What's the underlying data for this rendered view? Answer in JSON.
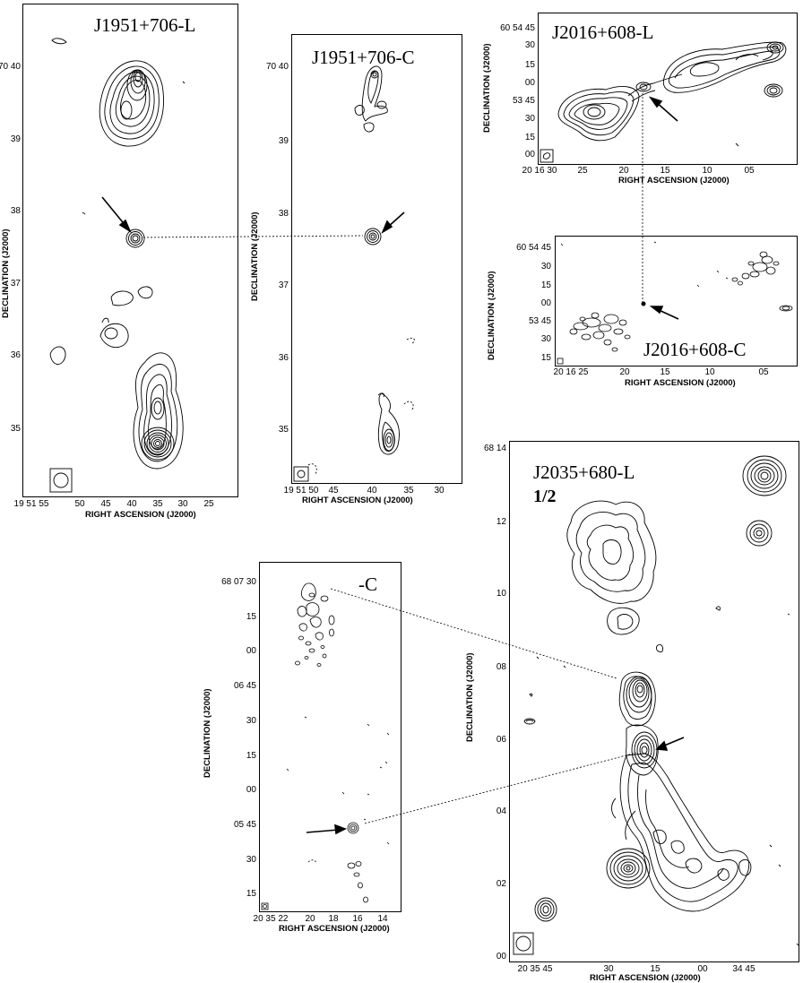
{
  "figure": {
    "panels": [
      {
        "id": "j1951-l",
        "title": "J1951+706-L",
        "ylabel": "DECLINATION (J2000)",
        "xlabel": "RIGHT ASCENSION (J2000)",
        "yticks": [
          "70 40",
          "39",
          "38",
          "37",
          "36",
          "35"
        ],
        "xticks": [
          "19 51 55",
          "50",
          "45",
          "40",
          "35",
          "30",
          "25"
        ]
      },
      {
        "id": "j1951-c",
        "title": "J1951+706-C",
        "ylabel": "DECLINATION (J2000)",
        "xlabel": "RIGHT ASCENSION (J2000)",
        "yticks": [
          "70 40",
          "39",
          "38",
          "37",
          "36",
          "35"
        ],
        "xticks": [
          "19 51 50",
          "45",
          "40",
          "35",
          "30"
        ]
      },
      {
        "id": "j2016-l",
        "title": "J2016+608-L",
        "ylabel": "DECLINATION (J2000)",
        "xlabel": "RIGHT ASCENSION (J2000)",
        "yticks": [
          "60 54 45",
          "30",
          "15",
          "00",
          "53 45",
          "30",
          "15",
          "00"
        ],
        "xticks": [
          "20 16 30",
          "25",
          "20",
          "15",
          "10",
          "05"
        ]
      },
      {
        "id": "j2016-c",
        "title": "J2016+608-C",
        "ylabel": "DECLINATION (J2000)",
        "xlabel": "RIGHT ASCENSION (J2000)",
        "yticks": [
          "60 54 45",
          "30",
          "15",
          "00",
          "53 45",
          "30",
          "15"
        ],
        "xticks": [
          "20 16 25",
          "20",
          "15",
          "10",
          "05"
        ]
      },
      {
        "id": "j2035-c",
        "title": "-C",
        "ylabel": "DECLINATION (J2000)",
        "xlabel": "RIGHT ASCENSION (J2000)",
        "yticks": [
          "68 07 30",
          "15",
          "00",
          "06 45",
          "30",
          "15",
          "00",
          "05 45",
          "30",
          "15"
        ],
        "xticks": [
          "20 35 22",
          "20",
          "18",
          "16",
          "14"
        ]
      },
      {
        "id": "j2035-l",
        "title": "J2035+680-L",
        "subtitle": "1/2",
        "ylabel": "DECLINATION (J2000)",
        "xlabel": "RIGHT ASCENSION (J2000)",
        "yticks": [
          "68 14",
          "12",
          "10",
          "08",
          "06",
          "04",
          "02",
          "00"
        ],
        "xticks": [
          "20 35 45",
          "30",
          "15",
          "00",
          "34 45"
        ]
      }
    ]
  }
}
